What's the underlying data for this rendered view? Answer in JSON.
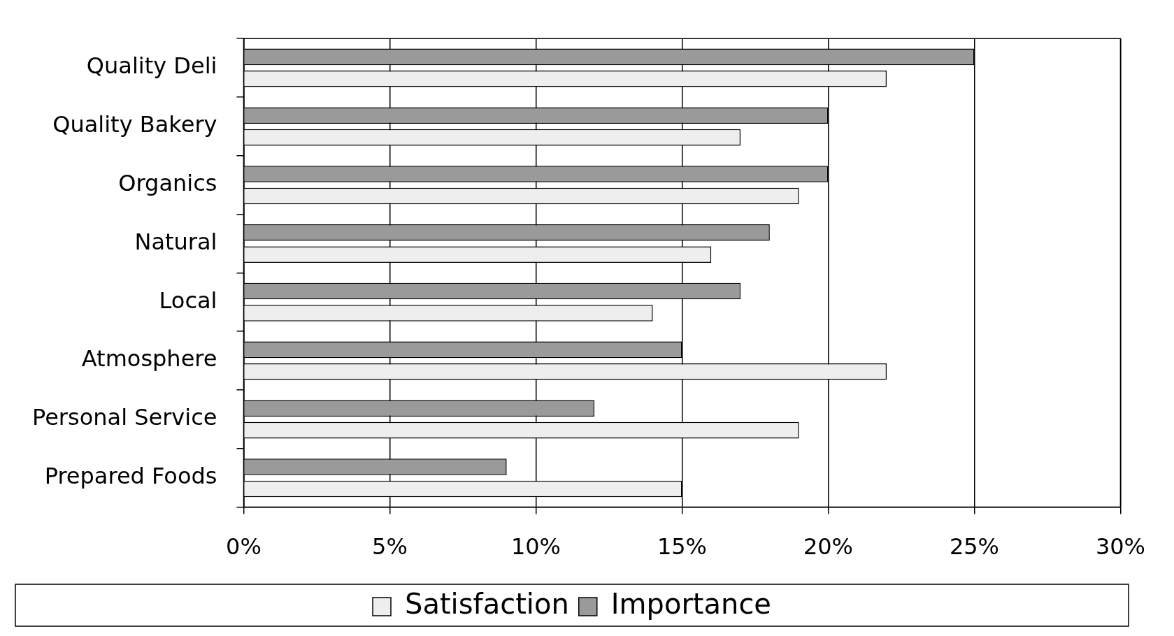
{
  "chart_data": {
    "type": "bar",
    "orientation": "horizontal",
    "categories": [
      "Quality Deli",
      "Quality Bakery",
      "Organics",
      "Natural",
      "Local",
      "Atmosphere",
      "Personal Service",
      "Prepared Foods"
    ],
    "series": [
      {
        "name": "Satisfaction",
        "color": "#eeeeee",
        "values": [
          22,
          17,
          19,
          16,
          14,
          22,
          19,
          15
        ]
      },
      {
        "name": "Importance",
        "color": "#9a9a9a",
        "values": [
          25,
          20,
          20,
          18,
          17,
          15,
          12,
          9
        ]
      }
    ],
    "xlim": [
      0,
      30
    ],
    "xticks": [
      {
        "value": 0,
        "label": "0%"
      },
      {
        "value": 5,
        "label": "5%"
      },
      {
        "value": 10,
        "label": "10%"
      },
      {
        "value": 15,
        "label": "15%"
      },
      {
        "value": 20,
        "label": "20%"
      },
      {
        "value": 25,
        "label": "25%"
      },
      {
        "value": 30,
        "label": "30%"
      }
    ],
    "grid": "x",
    "legend": "bottom"
  }
}
